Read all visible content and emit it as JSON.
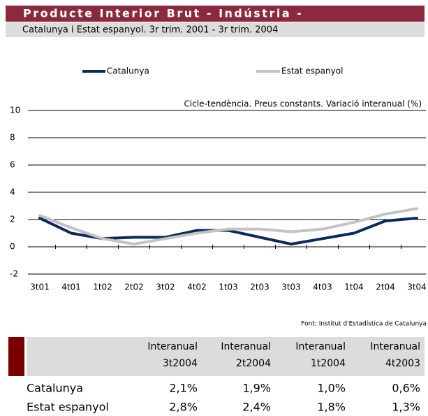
{
  "header": {
    "title": "Producte Interior Brut - Indústria -",
    "subtitle": "Catalunya i Estat espanyol. 3r trim. 2001 - 3r trim. 2004"
  },
  "chart_data": {
    "type": "line",
    "annotation": "Cicle-tendència. Preus constants. Variació interanual (%)",
    "source": "Font: Institut d'Estadística de Catalunya",
    "categories": [
      "3t01",
      "4t01",
      "1t02",
      "2t02",
      "3t02",
      "4t02",
      "1t03",
      "2t03",
      "3t03",
      "4t03",
      "1t04",
      "2t04",
      "3t04"
    ],
    "series": [
      {
        "name": "Catalunya",
        "color": "#0b2a5c",
        "values": [
          2.1,
          1.0,
          0.6,
          0.7,
          0.7,
          1.2,
          1.2,
          0.7,
          0.2,
          0.6,
          1.0,
          1.9,
          2.1
        ]
      },
      {
        "name": "Estat espanyol",
        "color": "#c3c3c3",
        "values": [
          2.3,
          1.4,
          0.6,
          0.2,
          0.6,
          1.0,
          1.3,
          1.3,
          1.1,
          1.3,
          1.8,
          2.4,
          2.8
        ]
      }
    ],
    "ylim": [
      -2,
      10
    ],
    "yticks": [
      -2,
      0,
      2,
      4,
      6,
      8,
      10
    ],
    "grid": true,
    "legend": "top"
  },
  "table": {
    "columns": [
      [
        "Interanual",
        "3t2004"
      ],
      [
        "Interanual",
        "2t2004"
      ],
      [
        "Interanual",
        "1t2004"
      ],
      [
        "Interanual",
        "4t2003"
      ]
    ],
    "rows": [
      {
        "label": "Catalunya",
        "values": [
          "2,1%",
          "1,9%",
          "1,0%",
          "0,6%"
        ]
      },
      {
        "label": "Estat espanyol",
        "values": [
          "2,8%",
          "2,4%",
          "1,8%",
          "1,3%"
        ]
      }
    ]
  }
}
